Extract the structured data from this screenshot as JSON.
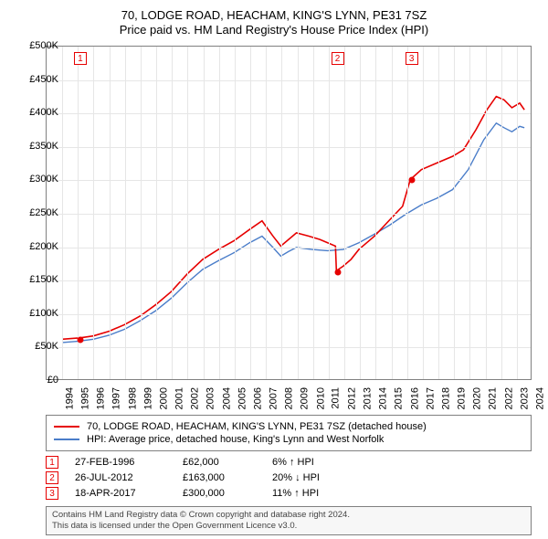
{
  "title": {
    "line1": "70, LODGE ROAD, HEACHAM, KING'S LYNN, PE31 7SZ",
    "line2": "Price paid vs. HM Land Registry's House Price Index (HPI)"
  },
  "chart": {
    "type": "line",
    "background_color": "#ffffff",
    "grid_color": "#e6e6e6",
    "border_color": "#808080",
    "y": {
      "min": 0,
      "max": 500000,
      "step": 50000,
      "ticks": [
        "£0",
        "£50K",
        "£100K",
        "£150K",
        "£200K",
        "£250K",
        "£300K",
        "£350K",
        "£400K",
        "£450K",
        "£500K"
      ]
    },
    "x": {
      "min": 1994,
      "max": 2025,
      "step": 1,
      "ticks": [
        "1994",
        "1995",
        "1996",
        "1997",
        "1998",
        "1999",
        "2000",
        "2001",
        "2002",
        "2003",
        "2004",
        "2005",
        "2006",
        "2007",
        "2008",
        "2009",
        "2010",
        "2011",
        "2012",
        "2013",
        "2014",
        "2015",
        "2016",
        "2017",
        "2018",
        "2019",
        "2020",
        "2021",
        "2022",
        "2023",
        "2024",
        "2025"
      ]
    },
    "series": {
      "property": {
        "color": "#e60000",
        "width": 1.6,
        "data": [
          [
            1995.0,
            60000
          ],
          [
            1996.15,
            62000
          ],
          [
            1997.0,
            65000
          ],
          [
            1998.0,
            72000
          ],
          [
            1999.0,
            82000
          ],
          [
            2000.0,
            95000
          ],
          [
            2001.0,
            112000
          ],
          [
            2002.0,
            132000
          ],
          [
            2003.0,
            158000
          ],
          [
            2004.0,
            180000
          ],
          [
            2005.0,
            195000
          ],
          [
            2006.0,
            208000
          ],
          [
            2007.0,
            225000
          ],
          [
            2007.8,
            238000
          ],
          [
            2008.5,
            215000
          ],
          [
            2009.0,
            200000
          ],
          [
            2009.5,
            210000
          ],
          [
            2010.0,
            220000
          ],
          [
            2010.8,
            215000
          ],
          [
            2011.5,
            210000
          ],
          [
            2012.0,
            205000
          ],
          [
            2012.5,
            200000
          ],
          [
            2012.56,
            163000
          ],
          [
            2013.0,
            170000
          ],
          [
            2013.5,
            180000
          ],
          [
            2014.0,
            195000
          ],
          [
            2015.0,
            215000
          ],
          [
            2016.0,
            240000
          ],
          [
            2016.8,
            260000
          ],
          [
            2017.29,
            300000
          ],
          [
            2018.0,
            315000
          ],
          [
            2019.0,
            325000
          ],
          [
            2020.0,
            335000
          ],
          [
            2020.7,
            345000
          ],
          [
            2021.5,
            375000
          ],
          [
            2022.2,
            405000
          ],
          [
            2022.8,
            425000
          ],
          [
            2023.3,
            420000
          ],
          [
            2023.8,
            408000
          ],
          [
            2024.3,
            415000
          ],
          [
            2024.6,
            405000
          ]
        ]
      },
      "hpi": {
        "color": "#4a7dc9",
        "width": 1.4,
        "data": [
          [
            1995.0,
            55000
          ],
          [
            1996.0,
            57000
          ],
          [
            1997.0,
            60000
          ],
          [
            1998.0,
            66000
          ],
          [
            1999.0,
            75000
          ],
          [
            2000.0,
            88000
          ],
          [
            2001.0,
            103000
          ],
          [
            2002.0,
            122000
          ],
          [
            2003.0,
            145000
          ],
          [
            2004.0,
            165000
          ],
          [
            2005.0,
            178000
          ],
          [
            2006.0,
            190000
          ],
          [
            2007.0,
            205000
          ],
          [
            2007.8,
            215000
          ],
          [
            2008.5,
            198000
          ],
          [
            2009.0,
            185000
          ],
          [
            2009.5,
            192000
          ],
          [
            2010.0,
            198000
          ],
          [
            2011.0,
            195000
          ],
          [
            2012.0,
            193000
          ],
          [
            2013.0,
            195000
          ],
          [
            2014.0,
            205000
          ],
          [
            2015.0,
            218000
          ],
          [
            2016.0,
            232000
          ],
          [
            2017.0,
            248000
          ],
          [
            2018.0,
            262000
          ],
          [
            2019.0,
            272000
          ],
          [
            2020.0,
            285000
          ],
          [
            2021.0,
            315000
          ],
          [
            2022.0,
            360000
          ],
          [
            2022.8,
            385000
          ],
          [
            2023.3,
            378000
          ],
          [
            2023.8,
            372000
          ],
          [
            2024.3,
            380000
          ],
          [
            2024.6,
            378000
          ]
        ]
      }
    },
    "markers": [
      {
        "n": "1",
        "x": 1996.15,
        "y": 62000
      },
      {
        "n": "2",
        "x": 2012.56,
        "y": 163000
      },
      {
        "n": "3",
        "x": 2017.29,
        "y": 300000
      }
    ]
  },
  "legend": {
    "items": [
      {
        "color": "#e60000",
        "label": "70, LODGE ROAD, HEACHAM, KING'S LYNN, PE31 7SZ (detached house)"
      },
      {
        "color": "#4a7dc9",
        "label": "HPI: Average price, detached house, King's Lynn and West Norfolk"
      }
    ]
  },
  "events": [
    {
      "n": "1",
      "date": "27-FEB-1996",
      "price": "£62,000",
      "delta": "6% ↑ HPI"
    },
    {
      "n": "2",
      "date": "26-JUL-2012",
      "price": "£163,000",
      "delta": "20% ↓ HPI"
    },
    {
      "n": "3",
      "date": "18-APR-2017",
      "price": "£300,000",
      "delta": "11% ↑ HPI"
    }
  ],
  "footer": {
    "line1": "Contains HM Land Registry data © Crown copyright and database right 2024.",
    "line2": "This data is licensed under the Open Government Licence v3.0."
  }
}
